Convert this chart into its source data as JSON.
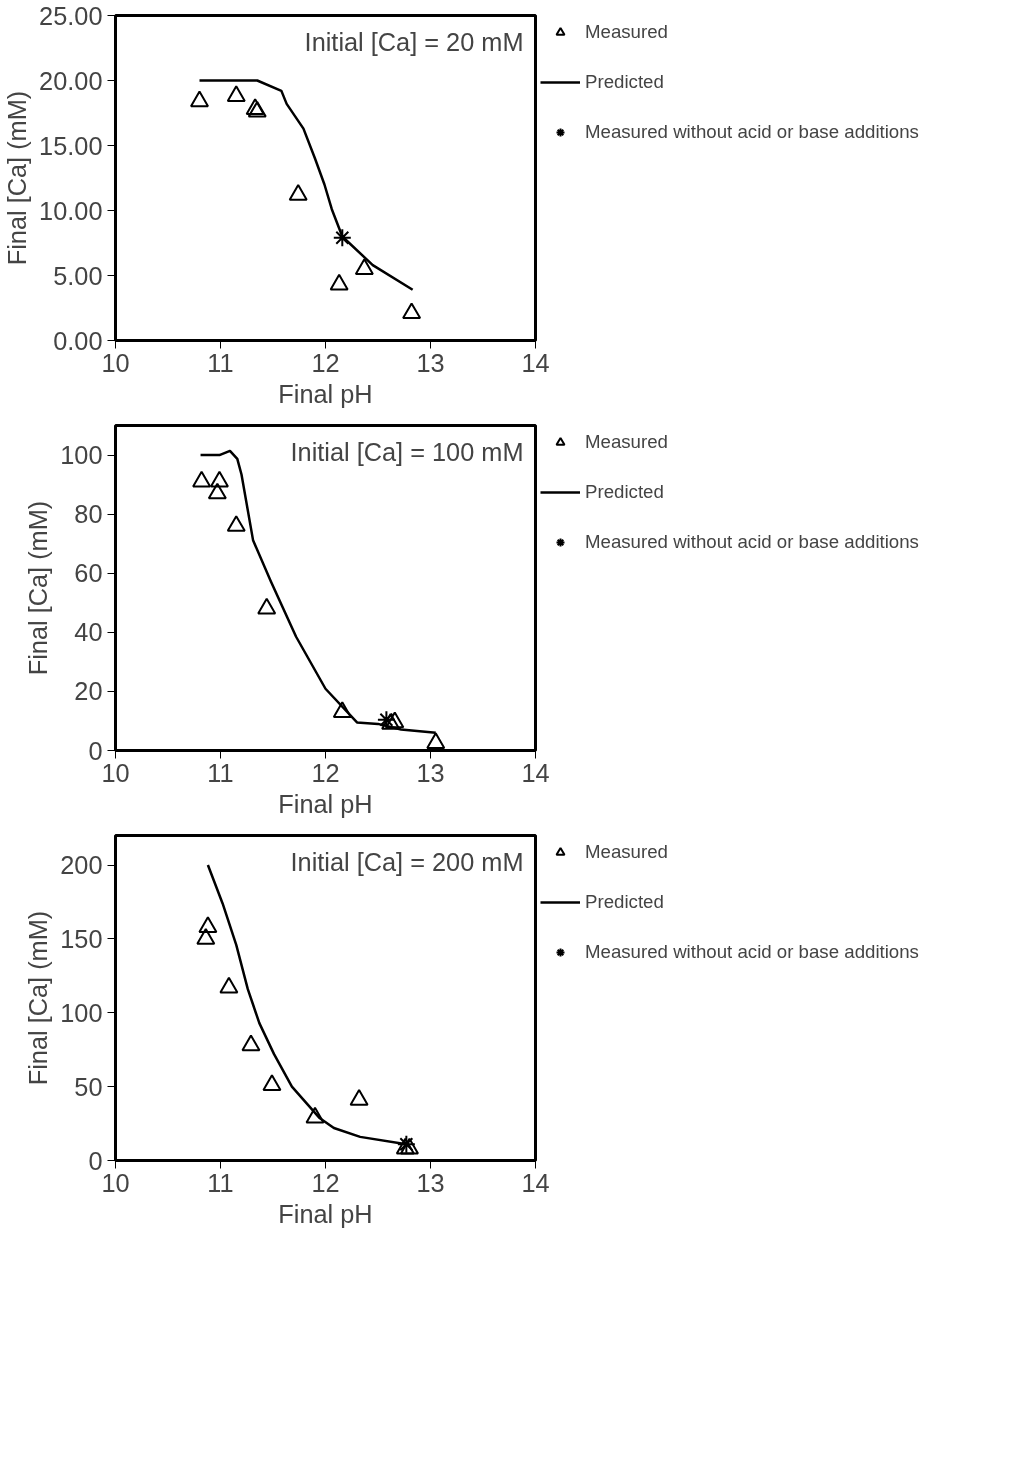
{
  "chart_data": [
    {
      "type": "scatter",
      "xlabel": "Final pH",
      "ylabel": "Final [Ca] (mM)",
      "annotations": [
        "Initial [Ca] = 20 mM"
      ],
      "xlim": [
        10,
        14
      ],
      "ylim": [
        0,
        25
      ],
      "xticks": [
        10,
        11,
        12,
        13,
        14
      ],
      "yticks": [
        {
          "value": 0,
          "label": "0.00"
        },
        {
          "value": 5,
          "label": "5.00"
        },
        {
          "value": 10,
          "label": "10.00"
        },
        {
          "value": 15,
          "label": "15.00"
        },
        {
          "value": 20,
          "label": "20.00"
        },
        {
          "value": 25,
          "label": "25.00"
        }
      ],
      "grid": false,
      "legend": "right",
      "series": [
        {
          "name": "Measured",
          "type": "scatter",
          "marker": "triangle",
          "color": "#000000",
          "x": [
            10.8,
            11.15,
            11.33,
            11.35,
            11.74,
            12.13,
            12.37,
            12.82
          ],
          "values": [
            18.4,
            18.8,
            17.8,
            17.6,
            11.2,
            4.3,
            5.5,
            2.1
          ]
        },
        {
          "name": "Predicted",
          "type": "line",
          "marker": "none",
          "line_style": "solid",
          "color": "#000000",
          "x": [
            10.8,
            11.35,
            11.58,
            11.63,
            11.79,
            11.9,
            11.99,
            12.06,
            12.16,
            12.45,
            12.83
          ],
          "values": [
            20.0,
            20.0,
            19.2,
            18.2,
            16.3,
            14.0,
            12.0,
            10.1,
            8.0,
            5.8,
            3.9
          ]
        },
        {
          "name": "Measured without acid or base additions",
          "marker": "cross",
          "color": "#000000",
          "x": [
            12.16
          ],
          "values": [
            7.9
          ]
        }
      ]
    },
    {
      "type": "scatter",
      "xlabel": "Final pH",
      "ylabel": "Final [Ca] (mM)",
      "annotations": [
        "Initial [Ca] = 100 mM"
      ],
      "xlim": [
        10,
        14
      ],
      "ylim": [
        0,
        110
      ],
      "xticks": [
        10,
        11,
        12,
        13,
        14
      ],
      "yticks": [
        0,
        20,
        40,
        60,
        80,
        100
      ],
      "grid": false,
      "legend": "right",
      "series": [
        {
          "name": "Measured",
          "type": "scatter",
          "marker": "triangle",
          "color": "#000000",
          "x": [
            10.82,
            10.99,
            10.97,
            11.15,
            11.44,
            12.16,
            12.66,
            12.62,
            13.05
          ],
          "values": [
            91,
            91,
            87,
            76,
            48,
            13,
            9.5,
            9,
            2.5
          ]
        },
        {
          "name": "Predicted",
          "type": "line",
          "marker": "none",
          "line_style": "solid",
          "color": "#000000",
          "x": [
            10.81,
            10.99,
            11.09,
            11.16,
            11.2,
            11.31,
            11.48,
            11.72,
            12.0,
            12.3,
            12.5,
            12.72,
            13.05
          ],
          "values": [
            100,
            100,
            101.4,
            98.7,
            93.4,
            71.2,
            57.2,
            38.5,
            20.9,
            9.5,
            9.0,
            7.1,
            6.0
          ]
        },
        {
          "name": "Measured without acid or base additions",
          "marker": "cross",
          "color": "#000000",
          "x": [
            12.58
          ],
          "values": [
            10.4
          ]
        }
      ]
    },
    {
      "type": "scatter",
      "xlabel": "Final pH",
      "ylabel": "Final [Ca] (mM)",
      "annotations": [
        "Initial [Ca] = 200 mM"
      ],
      "xlim": [
        10,
        14
      ],
      "ylim": [
        0,
        220
      ],
      "xticks": [
        10,
        11,
        12,
        13,
        14
      ],
      "yticks": [
        0,
        50,
        100,
        150,
        200
      ],
      "grid": false,
      "legend": "right",
      "series": [
        {
          "name": "Measured",
          "type": "scatter",
          "marker": "triangle",
          "color": "#000000",
          "x": [
            10.88,
            10.86,
            11.08,
            11.29,
            11.49,
            11.9,
            12.32,
            12.76,
            12.8
          ],
          "values": [
            158,
            150,
            117,
            78,
            51,
            29,
            41,
            8,
            8
          ]
        },
        {
          "name": "Predicted",
          "type": "line",
          "marker": "none",
          "line_style": "solid",
          "color": "#000000",
          "x": [
            10.88,
            11.02,
            11.15,
            11.26,
            11.37,
            11.51,
            11.68,
            11.94,
            12.08,
            12.33,
            12.77
          ],
          "values": [
            200,
            174,
            146,
            116,
            93,
            72,
            50,
            29,
            22,
            16,
            11
          ]
        },
        {
          "name": "Measured without acid or base additions",
          "marker": "cross",
          "color": "#000000",
          "x": [
            12.77
          ],
          "values": [
            11
          ]
        }
      ]
    }
  ]
}
